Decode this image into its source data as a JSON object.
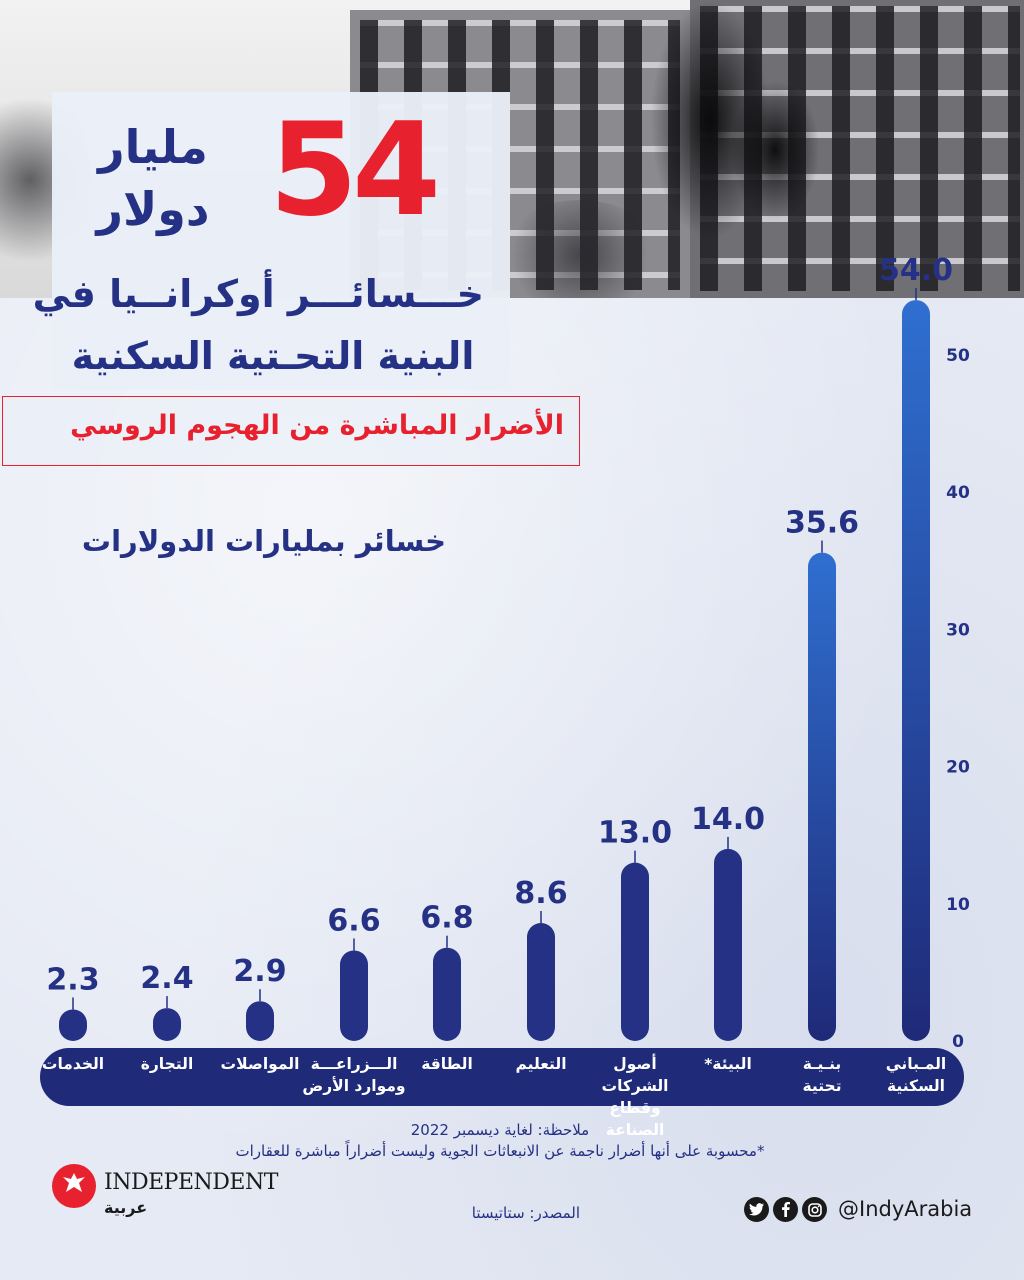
{
  "headline": {
    "big_number": "54",
    "unit_line1": "مليار",
    "unit_line2": "دولار",
    "title_line1": "خـــسائـــر أوكرانــيا في",
    "title_line2": "البنية التحـتية السكنية",
    "subtitle": "الأضرار المباشرة من الهجوم الروسي",
    "axis_caption": "خسائر بمليارات الدولارات"
  },
  "chart_data": {
    "type": "bar",
    "title": "خسائر أوكرانيا في البنية التحتية السكنية",
    "ylabel": "خسائر بمليارات الدولارات",
    "ylim": [
      0,
      54
    ],
    "yticks": [
      0,
      10,
      20,
      30,
      40,
      50
    ],
    "categories": [
      "المـباني\nالسكنية",
      "بنـيـة\nتحتية",
      "البيئة*",
      "أصول الشركات\nوقطاع الصناعة",
      "التعليم",
      "الطاقة",
      "الـــزراعـــة\nوموارد الأرض",
      "المواصلات",
      "التجارة",
      "الخدمات"
    ],
    "values": [
      54.0,
      35.6,
      14.0,
      13.0,
      8.6,
      6.8,
      6.6,
      2.9,
      2.4,
      2.3
    ],
    "value_labels": [
      "54.0",
      "35.6",
      "14.0",
      "13.0",
      "8.6",
      "6.8",
      "6.6",
      "2.9",
      "2.4",
      "2.3"
    ],
    "bar_color": "#243184",
    "bar_color_top": "#2f6fd0"
  },
  "notes": {
    "note": "ملاحظة: لغاية ديسمبر 2022",
    "asterisk": "*محسوبة على أنها أضرار ناجمة عن الانبعاثات الجوية وليست أضراراً مباشرة للعقارات"
  },
  "footer": {
    "logo_word": "INDEPENDENT",
    "logo_arabic": "عربية",
    "source": "المصدر: ستاتيستا",
    "handle": "@IndyArabia",
    "social_icons": [
      "instagram-icon",
      "facebook-icon",
      "twitter-icon"
    ]
  },
  "colors": {
    "accent_red": "#e8212f",
    "navy": "#243184",
    "band": "#1f2a78"
  }
}
